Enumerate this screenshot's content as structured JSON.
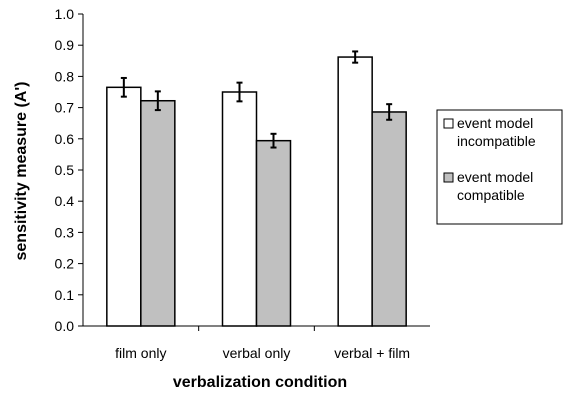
{
  "chart_data": {
    "type": "bar",
    "categories": [
      "film only",
      "verbal only",
      "verbal + film"
    ],
    "series": [
      {
        "name": "event model incompatible",
        "legend_lines": [
          "event model",
          "incompatible"
        ],
        "color": "#ffffff",
        "values": [
          0.765,
          0.75,
          0.862
        ],
        "errors": [
          0.03,
          0.03,
          0.018
        ]
      },
      {
        "name": "event model compatible",
        "legend_lines": [
          "event model",
          "compatible"
        ],
        "color": "#c0c0c0",
        "values": [
          0.722,
          0.594,
          0.686
        ],
        "errors": [
          0.03,
          0.022,
          0.025
        ]
      }
    ],
    "xlabel": "verbalization condition",
    "ylabel": "sensitivity measure (A')",
    "ylim": [
      0.0,
      1.0
    ],
    "yticks": [
      0.0,
      0.1,
      0.2,
      0.3,
      0.4,
      0.5,
      0.6,
      0.7,
      0.8,
      0.9,
      1.0
    ],
    "ytick_labels": [
      "0.0",
      "0.1",
      "0.2",
      "0.3",
      "0.4",
      "0.5",
      "0.6",
      "0.7",
      "0.8",
      "0.9",
      "1.0"
    ],
    "grid": false,
    "legend_position": "right",
    "colors": {
      "axis": "#000000",
      "bar_outline": "#000000"
    }
  }
}
